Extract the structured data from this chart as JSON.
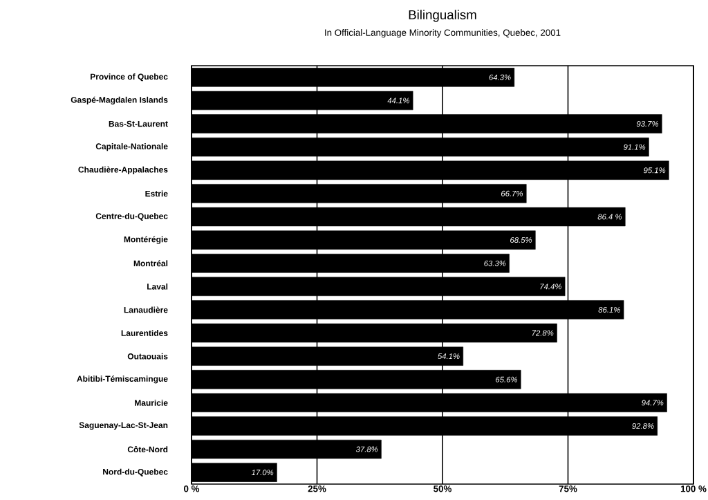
{
  "chart_data": {
    "type": "bar",
    "orientation": "horizontal",
    "title": "Bilingualism",
    "subtitle": "In Official-Language Minority Communities, Quebec, 2001",
    "categories": [
      "Province of Quebec",
      "Gaspé-Magdalen Islands",
      "Bas-St-Laurent",
      "Capitale-Nationale",
      "Chaudière-Appalaches",
      "Estrie",
      "Centre-du-Quebec",
      "Montérégie",
      "Montréal",
      "Laval",
      "Lanaudière",
      "Laurentides",
      "Outaouais",
      "Abitibi-Témiscamingue",
      "Mauricie",
      "Saguenay-Lac-St-Jean",
      "Côte-Nord",
      "Nord-du-Quebec"
    ],
    "values": [
      64.3,
      44.1,
      93.7,
      91.1,
      95.1,
      66.7,
      86.4,
      68.5,
      63.3,
      74.4,
      86.1,
      72.8,
      54.1,
      65.6,
      94.7,
      92.8,
      37.8,
      17.0
    ],
    "value_labels": [
      "64.3%",
      "44.1%",
      "93.7%",
      "91.1%",
      "95.1%",
      "66.7%",
      "86.4 %",
      "68.5%",
      "63.3%",
      "74.4%",
      "86.1%",
      "72.8%",
      "54.1%",
      "65.6%",
      "94.7%",
      "92.8%",
      "37.8%",
      "17.0%"
    ],
    "color": "#000000",
    "xlim": [
      0,
      100
    ],
    "xticks": [
      {
        "value": 0,
        "label": "0 %"
      },
      {
        "value": 25,
        "label": "25%"
      },
      {
        "value": 50,
        "label": "50%"
      },
      {
        "value": 75,
        "label": "75%"
      },
      {
        "value": 100,
        "label": "100 %"
      }
    ],
    "grid": "x"
  }
}
